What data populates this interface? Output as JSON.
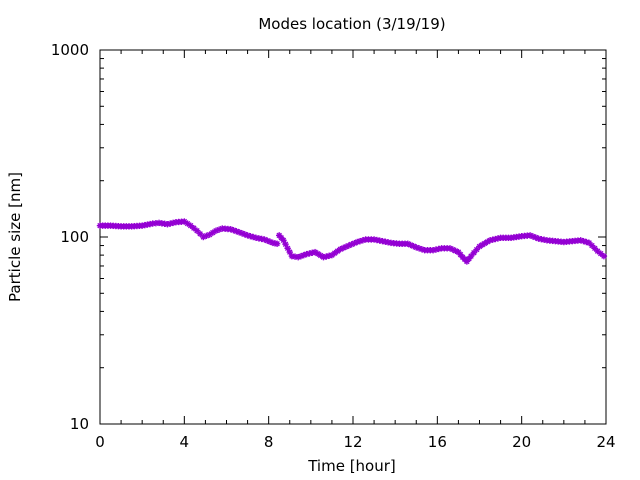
{
  "chart_data": {
    "type": "scatter",
    "title": "Modes location (3/19/19)",
    "xlabel": "Time [hour]",
    "ylabel": "Particle size [nm]",
    "xlim": [
      0,
      24
    ],
    "ylim": [
      10,
      1000
    ],
    "yscale": "log",
    "grid": false,
    "legend": "none",
    "color": "#9400d3",
    "x_ticks": [
      0,
      4,
      8,
      12,
      16,
      20,
      24
    ],
    "y_ticks": [
      10,
      100,
      1000
    ],
    "x_tick_labels": [
      "0",
      "4",
      "8",
      "12",
      "16",
      "20",
      "24"
    ],
    "y_tick_labels": [
      "10",
      "100",
      "1000"
    ],
    "series": [
      {
        "segment": 1,
        "x": [
          0.0,
          0.5,
          1.0,
          1.5,
          2.0,
          2.5,
          2.8,
          3.2,
          3.6,
          4.0,
          4.3,
          4.6,
          4.9,
          5.2,
          5.5,
          5.8,
          6.2,
          6.6,
          7.0,
          7.4,
          7.8,
          8.2,
          8.4
        ],
        "y": [
          115,
          115,
          114,
          114,
          115,
          118,
          119,
          117,
          120,
          121,
          115,
          108,
          100,
          103,
          108,
          111,
          110,
          106,
          102,
          99,
          97,
          93,
          92
        ]
      },
      {
        "segment": 2,
        "x": [
          8.5,
          8.7,
          8.9,
          9.1,
          9.4,
          9.8,
          10.2,
          10.6,
          11.0,
          11.4,
          11.8,
          12.2,
          12.6,
          13.0,
          13.4,
          13.8,
          14.2,
          14.6,
          15.0,
          15.4,
          15.8,
          16.2,
          16.6,
          17.0,
          17.2,
          17.4,
          17.6,
          18.0,
          18.5,
          19.0,
          19.5,
          20.0,
          20.4,
          20.8,
          21.2,
          21.6,
          22.0,
          22.4,
          22.8,
          23.2,
          23.6,
          23.9
        ],
        "y": [
          102,
          96,
          87,
          79,
          78,
          81,
          83,
          78,
          80,
          86,
          90,
          94,
          97,
          97,
          95,
          93,
          92,
          92,
          88,
          85,
          85,
          87,
          87,
          83,
          78,
          74,
          79,
          89,
          96,
          99,
          99,
          101,
          102,
          98,
          96,
          95,
          94,
          95,
          96,
          93,
          84,
          79
        ]
      }
    ]
  }
}
